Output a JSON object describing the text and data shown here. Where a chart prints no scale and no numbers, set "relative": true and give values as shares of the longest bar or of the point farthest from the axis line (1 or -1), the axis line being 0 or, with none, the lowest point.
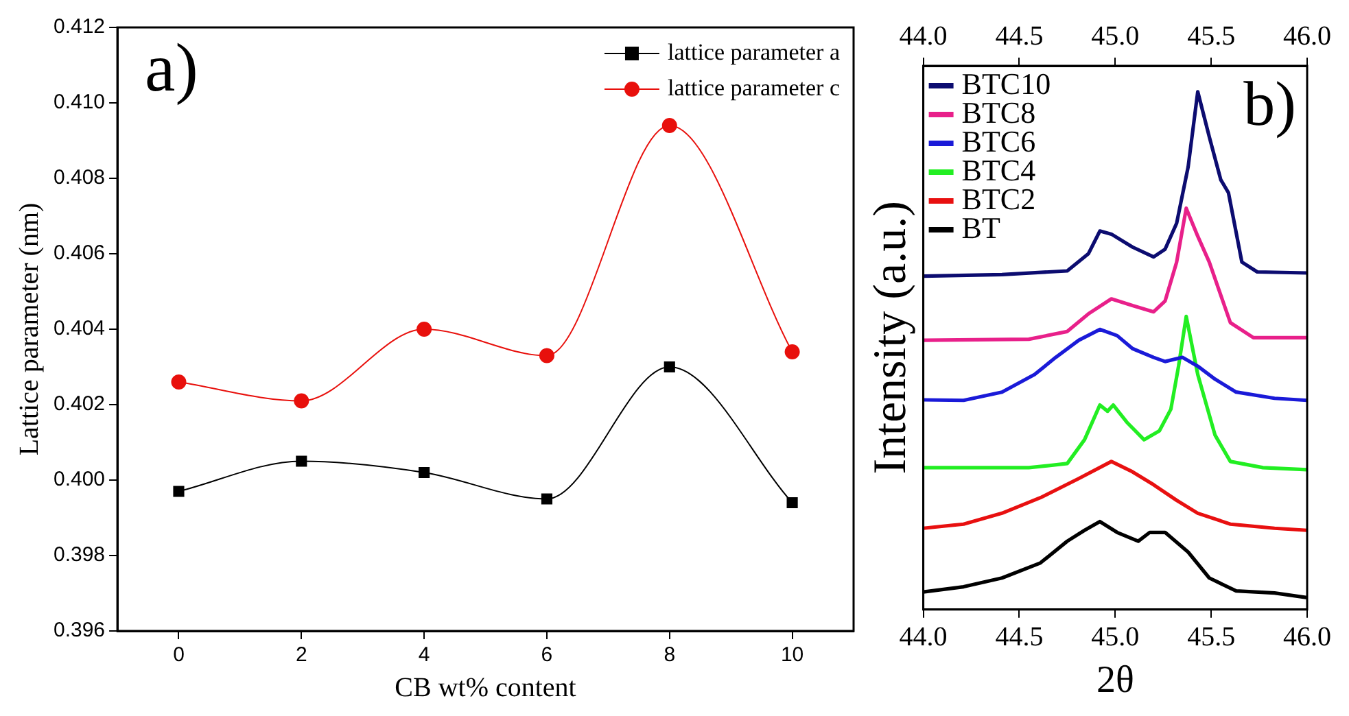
{
  "chart_data": [
    {
      "type": "line",
      "xlabel": "CB wt% content",
      "ylabel": "Lattice parameter (nm)",
      "annotations": [
        "a)"
      ],
      "x": [
        0,
        2,
        4,
        6,
        8,
        10
      ],
      "xlim": [
        -1,
        11
      ],
      "xticks": [
        0,
        2,
        4,
        6,
        8,
        10
      ],
      "ylim": [
        0.396,
        0.412
      ],
      "yticks": [
        0.396,
        0.398,
        {
          "value": 0.4,
          "label": "0.400"
        },
        0.402,
        0.404,
        0.406,
        0.408,
        {
          "value": 0.41,
          "label": "0.410"
        },
        0.412
      ],
      "legend": "top right",
      "grid": false,
      "series": [
        {
          "name": "lattice parameter a",
          "color": "#000000",
          "marker": "square",
          "values": [
            0.3997,
            0.4005,
            0.4002,
            0.3995,
            0.403,
            0.3994
          ]
        },
        {
          "name": "lattice parameter c",
          "color": "#e8100c",
          "marker": "circle",
          "values": [
            0.4026,
            0.4021,
            0.404,
            0.4033,
            0.4094,
            0.4034
          ]
        }
      ]
    },
    {
      "type": "line",
      "xlabel": "2θ",
      "ylabel": "Intensity (a.u.)",
      "annotations": [
        "b)"
      ],
      "relative": true,
      "marker": "none",
      "legend": "top left",
      "grid": false,
      "xlim": [
        44,
        46
      ],
      "xticks": [
        {
          "value": 44,
          "label": "44.0"
        },
        {
          "value": 44.5,
          "label": "44.5"
        },
        {
          "value": 45,
          "label": "45.0"
        },
        {
          "value": 45.5,
          "label": "45.5"
        },
        {
          "value": 46,
          "label": "46.0"
        }
      ],
      "x2lim": [
        44,
        46
      ],
      "x2ticks": [
        {
          "value": 44,
          "label": "44.0"
        },
        {
          "value": 44.5,
          "label": "44.5"
        },
        {
          "value": 45,
          "label": "45.0"
        },
        {
          "value": 45.5,
          "label": "45.5"
        },
        {
          "value": 46,
          "label": "46.0"
        }
      ],
      "series": [
        {
          "name": "BTC10",
          "color": "#0c0c70",
          "x": [
            44,
            44.41,
            44.75,
            44.86,
            44.92,
            44.98,
            45.09,
            45.2,
            45.26,
            45.32,
            45.38,
            45.43,
            45.49,
            45.55,
            45.59,
            45.66,
            45.74,
            46
          ],
          "values": [
            0.644,
            0.647,
            0.654,
            0.687,
            0.731,
            0.725,
            0.7,
            0.681,
            0.696,
            0.746,
            0.855,
            1,
            0.913,
            0.83,
            0.805,
            0.671,
            0.652,
            0.65
          ]
        },
        {
          "name": "BTC8",
          "color": "#e8208a",
          "x": [
            44,
            44.55,
            44.75,
            44.86,
            44.98,
            45.09,
            45.2,
            45.26,
            45.32,
            45.37,
            45.43,
            45.49,
            45.6,
            45.72,
            46
          ],
          "values": [
            0.52,
            0.522,
            0.537,
            0.571,
            0.6,
            0.587,
            0.575,
            0.596,
            0.671,
            0.775,
            0.721,
            0.671,
            0.554,
            0.525,
            0.525
          ]
        },
        {
          "name": "BTC6",
          "color": "#1a1ad8",
          "x": [
            44,
            44.21,
            44.41,
            44.58,
            44.69,
            44.81,
            44.92,
            45.01,
            45.09,
            45.2,
            45.26,
            45.35,
            45.43,
            45.52,
            45.63,
            45.83,
            46
          ],
          "values": [
            0.405,
            0.404,
            0.42,
            0.454,
            0.487,
            0.52,
            0.541,
            0.529,
            0.504,
            0.487,
            0.479,
            0.487,
            0.47,
            0.445,
            0.42,
            0.408,
            0.404
          ]
        },
        {
          "name": "BTC4",
          "color": "#22ee22",
          "x": [
            44,
            44.55,
            44.75,
            44.84,
            44.92,
            44.96,
            44.99,
            45.06,
            45.15,
            45.23,
            45.29,
            45.33,
            45.37,
            45.43,
            45.52,
            45.6,
            45.77,
            46
          ],
          "values": [
            0.274,
            0.274,
            0.282,
            0.328,
            0.395,
            0.383,
            0.395,
            0.362,
            0.328,
            0.345,
            0.387,
            0.47,
            0.566,
            0.454,
            0.337,
            0.286,
            0.274,
            0.27
          ]
        },
        {
          "name": "BTC2",
          "color": "#e81010",
          "x": [
            44,
            44.21,
            44.41,
            44.61,
            44.81,
            44.98,
            45.09,
            45.2,
            45.32,
            45.43,
            45.6,
            45.83,
            46
          ],
          "values": [
            0.157,
            0.165,
            0.186,
            0.216,
            0.253,
            0.286,
            0.266,
            0.241,
            0.211,
            0.186,
            0.165,
            0.157,
            0.153
          ]
        },
        {
          "name": "BT",
          "color": "#000000",
          "x": [
            44,
            44.21,
            44.41,
            44.61,
            44.75,
            44.84,
            44.92,
            45.01,
            45.12,
            45.18,
            45.26,
            45.38,
            45.49,
            45.63,
            45.83,
            46
          ],
          "values": [
            0.034,
            0.044,
            0.061,
            0.09,
            0.132,
            0.153,
            0.17,
            0.149,
            0.132,
            0.149,
            0.149,
            0.111,
            0.061,
            0.036,
            0.032,
            0.023
          ]
        }
      ]
    }
  ]
}
